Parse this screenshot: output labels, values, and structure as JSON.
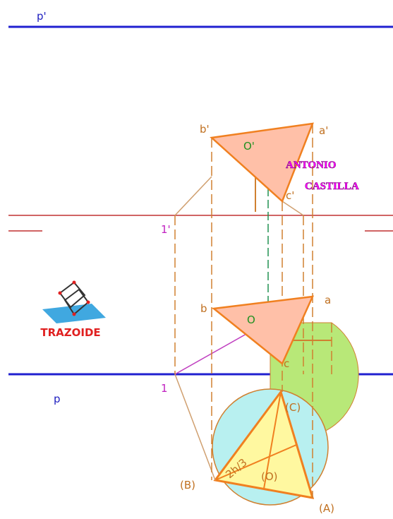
{
  "labels": {
    "p_prime": "p'",
    "b_prime": "b'",
    "a_prime": "a'",
    "o_prime": "O'",
    "c_prime": "c'",
    "one_prime": "1'",
    "b": "b",
    "a": "a",
    "o": "O",
    "c": "c",
    "p": "p",
    "one": "1",
    "C": "(C)",
    "B": "(B)",
    "A": "(A)",
    "O": "(O)",
    "h": "2h/3"
  },
  "author": {
    "first": "ANTONIO",
    "last": "CASTILLA"
  },
  "logo": {
    "text": "TRAZOIDE"
  }
}
